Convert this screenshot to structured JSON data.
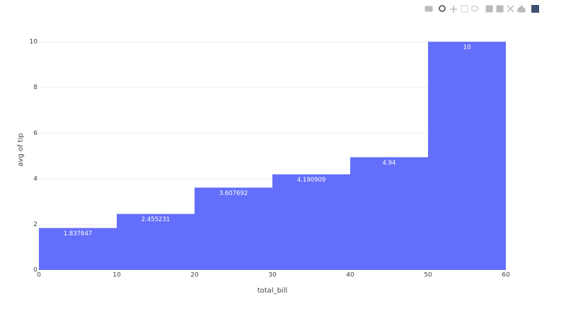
{
  "chart_data": {
    "type": "histogram",
    "bins": [
      0,
      10,
      20,
      30,
      40,
      50,
      60
    ],
    "values": [
      1.837647,
      2.455231,
      3.607692,
      4.190909,
      4.94,
      10
    ],
    "color": "#636efa",
    "x_label": "total_bill",
    "y_label": "avg of tip",
    "xlim": [
      0,
      60
    ],
    "xticks": [
      0,
      10,
      20,
      30,
      40,
      50,
      60
    ],
    "ylim": [
      0,
      10.53
    ],
    "yticks": [
      0,
      2,
      4,
      6,
      8,
      10
    ],
    "grid": true
  }
}
